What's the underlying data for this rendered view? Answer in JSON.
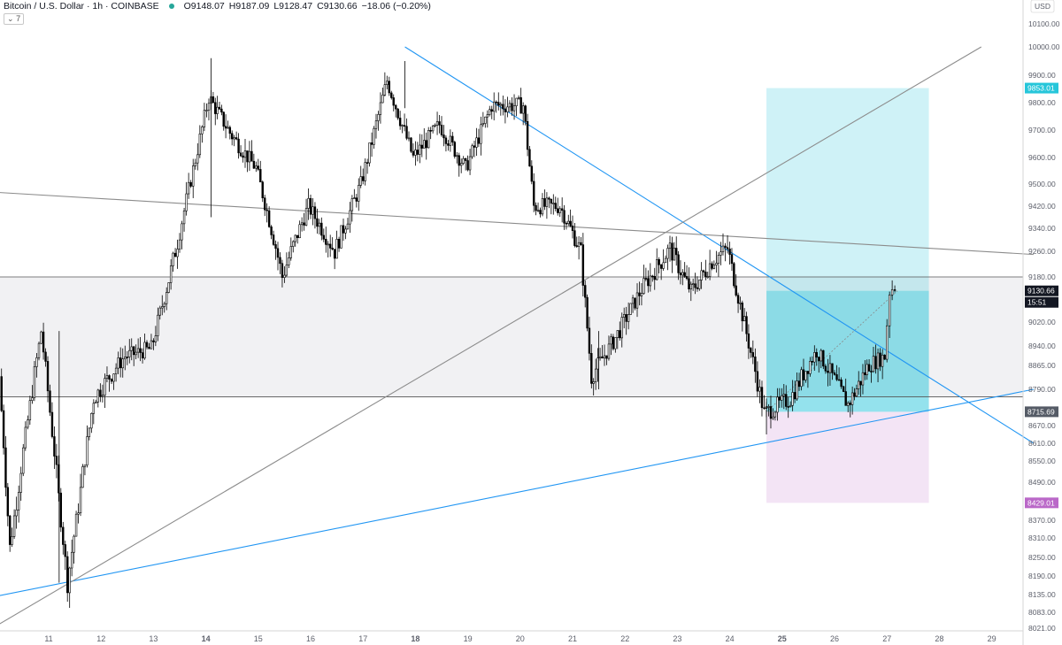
{
  "header": {
    "symbol": "Bitcoin / U.S. Dollar · 1h · COINBASE",
    "open": "O9148.07",
    "high": "H9187.09",
    "low": "L9128.47",
    "close": "C9130.66",
    "change": "−18.06 (−0.20%)",
    "indicator": "7"
  },
  "colors": {
    "up_candle": "#ffffff",
    "down_candle": "#000000",
    "trendline_blue": "#2196f3",
    "line_gray": "#8c8c8c",
    "profit_zone": "#26c6da",
    "loss_zone": "#ce93d8",
    "range_band": "#e6e6e9"
  },
  "chart_data": {
    "type": "candlestick",
    "title": "",
    "currency_label": "USD",
    "ylim": [
      8010,
      10200
    ],
    "y_ticks": [
      "10100.00",
      "10000.00",
      "9900.00",
      "9800.00",
      "9700.00",
      "9600.00",
      "9500.00",
      "9420.00",
      "9340.00",
      "9260.00",
      "9180.00",
      "9020.00",
      "8940.00",
      "8865.00",
      "8790.00",
      "8670.00",
      "8610.00",
      "8550.00",
      "8490.00",
      "8430.00",
      "8370.00",
      "8310.00",
      "8250.00",
      "8190.00",
      "8135.00",
      "8083.00",
      "8021.00"
    ],
    "x_ticks": [
      "11",
      "12",
      "13",
      "14",
      "15",
      "16",
      "17",
      "18",
      "19",
      "20",
      "21",
      "22",
      "23",
      "24",
      "25",
      "26",
      "27",
      "28",
      "29"
    ],
    "price_labels": [
      {
        "text": "9853.01",
        "kind": "target"
      },
      {
        "text": "9130.66",
        "kind": "last"
      },
      {
        "text": "15:51",
        "kind": "countdown"
      },
      {
        "text": "8715.69",
        "kind": "entry"
      },
      {
        "text": "8429.01",
        "kind": "stop"
      }
    ],
    "position": {
      "target": 9853.01,
      "entry": 8715.69,
      "stop": 8429.01,
      "start_day": 24.7,
      "end_day": 27.8
    },
    "range_band": {
      "top": 9180,
      "bottom": 8765
    },
    "horizontal_lines": [
      9180,
      8765
    ],
    "trendlines": [
      {
        "color": "blue",
        "from": [
          17.8,
          10200
        ],
        "to": [
          29.8,
          8610
        ]
      },
      {
        "color": "blue",
        "from": [
          10.0,
          8130
        ],
        "to": [
          29.8,
          8790
        ]
      },
      {
        "color": "gray",
        "from": [
          10.0,
          9470
        ],
        "to": [
          29.8,
          9250
        ]
      },
      {
        "color": "gray",
        "from": [
          10.0,
          8030
        ],
        "to": [
          28.8,
          10200
        ]
      }
    ],
    "candles_key_points": [
      {
        "day": 10.1,
        "price": 8830
      },
      {
        "day": 10.3,
        "price": 8280
      },
      {
        "day": 10.9,
        "price": 8990
      },
      {
        "day": 11.4,
        "price": 8170
      },
      {
        "day": 11.9,
        "price": 8760
      },
      {
        "day": 12.5,
        "price": 8900
      },
      {
        "day": 13.0,
        "price": 8930
      },
      {
        "day": 13.5,
        "price": 9290
      },
      {
        "day": 14.1,
        "price": 9820
      },
      {
        "day": 14.5,
        "price": 9690
      },
      {
        "day": 15.0,
        "price": 9560
      },
      {
        "day": 15.5,
        "price": 9180
      },
      {
        "day": 16.0,
        "price": 9420
      },
      {
        "day": 16.5,
        "price": 9260
      },
      {
        "day": 17.0,
        "price": 9500
      },
      {
        "day": 17.5,
        "price": 9880
      },
      {
        "day": 18.0,
        "price": 9600
      },
      {
        "day": 18.5,
        "price": 9720
      },
      {
        "day": 19.0,
        "price": 9560
      },
      {
        "day": 19.5,
        "price": 9790
      },
      {
        "day": 20.1,
        "price": 9790
      },
      {
        "day": 20.3,
        "price": 9420
      },
      {
        "day": 20.8,
        "price": 9420
      },
      {
        "day": 21.2,
        "price": 9260
      },
      {
        "day": 21.4,
        "price": 8830
      },
      {
        "day": 21.9,
        "price": 8980
      },
      {
        "day": 22.4,
        "price": 9150
      },
      {
        "day": 22.9,
        "price": 9270
      },
      {
        "day": 23.3,
        "price": 9130
      },
      {
        "day": 23.7,
        "price": 9230
      },
      {
        "day": 24.0,
        "price": 9270
      },
      {
        "day": 24.4,
        "price": 8950
      },
      {
        "day": 24.7,
        "price": 8710
      },
      {
        "day": 25.2,
        "price": 8760
      },
      {
        "day": 25.7,
        "price": 8920
      },
      {
        "day": 26.3,
        "price": 8740
      },
      {
        "day": 26.7,
        "price": 8870
      },
      {
        "day": 27.0,
        "price": 8900
      },
      {
        "day": 27.1,
        "price": 9130
      },
      {
        "day": 27.2,
        "price": 9150
      }
    ]
  }
}
